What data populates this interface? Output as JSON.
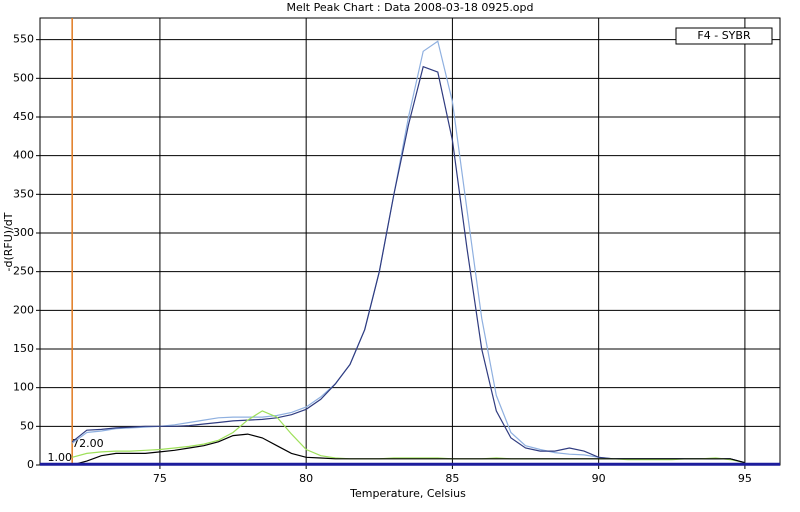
{
  "chart_data": {
    "type": "line",
    "title": "Melt Peak Chart : Data 2008-03-18 0925.opd",
    "xlabel": "Temperature, Celsius",
    "ylabel": "-d(RFU)/dT",
    "legend": {
      "label": "F4 - SYBR",
      "position": "top-right"
    },
    "grid": true,
    "xlim": [
      70.9,
      96.2
    ],
    "ylim": [
      0,
      578
    ],
    "xticks": [
      75,
      80,
      85,
      90,
      95
    ],
    "yticks": [
      0,
      50,
      100,
      150,
      200,
      250,
      300,
      350,
      400,
      450,
      500,
      550
    ],
    "marker": {
      "value": 72,
      "label": "72.00",
      "color": "#e07a20"
    },
    "baseline": {
      "value": 1,
      "label": "1.00",
      "color": "#1c1c9c"
    },
    "x": [
      72,
      72.5,
      73,
      73.5,
      74,
      74.5,
      75,
      75.5,
      76,
      76.5,
      77,
      77.5,
      78,
      78.5,
      79,
      79.5,
      80,
      80.5,
      81,
      81.5,
      82,
      82.5,
      83,
      83.5,
      84,
      84.5,
      85,
      85.5,
      86,
      86.5,
      87,
      87.5,
      88,
      88.5,
      89,
      89.5,
      90,
      90.5,
      91,
      91.5,
      92,
      92.5,
      93,
      93.5,
      94,
      94.5,
      95
    ],
    "series": [
      {
        "color": "#8fb0e0",
        "values": [
          28,
          42,
          44,
          47,
          48,
          49,
          50,
          52,
          55,
          58,
          61,
          62,
          62,
          62,
          64,
          68,
          75,
          88,
          105,
          130,
          175,
          250,
          350,
          450,
          535,
          548,
          470,
          330,
          190,
          90,
          42,
          25,
          20,
          16,
          14,
          13,
          10,
          8,
          8,
          8,
          8,
          8,
          8,
          8,
          8,
          8,
          3
        ]
      },
      {
        "color": "#303c80",
        "values": [
          30,
          45,
          46,
          48,
          49,
          50,
          50,
          50,
          51,
          53,
          55,
          57,
          58,
          59,
          61,
          65,
          72,
          85,
          105,
          130,
          175,
          250,
          350,
          440,
          515,
          508,
          420,
          280,
          150,
          70,
          35,
          22,
          18,
          18,
          22,
          18,
          10,
          8,
          8,
          8,
          8,
          8,
          8,
          8,
          8,
          8,
          3
        ]
      },
      {
        "color": "#9ee05a",
        "values": [
          10,
          15,
          17,
          18,
          18,
          19,
          20,
          22,
          24,
          27,
          32,
          42,
          58,
          70,
          62,
          40,
          20,
          12,
          9,
          8,
          8,
          8,
          9,
          9,
          9,
          9,
          8,
          8,
          8,
          9,
          8,
          8,
          8,
          8,
          8,
          8,
          8,
          8,
          7,
          7,
          7,
          7,
          8,
          8,
          9,
          7,
          3
        ]
      },
      {
        "color": "#000000",
        "values": [
          0,
          5,
          12,
          15,
          15,
          15,
          17,
          19,
          22,
          25,
          30,
          38,
          40,
          35,
          25,
          15,
          10,
          9,
          8,
          8,
          8,
          8,
          8,
          8,
          8,
          8,
          8,
          8,
          8,
          8,
          8,
          8,
          8,
          8,
          8,
          8,
          8,
          8,
          8,
          8,
          8,
          8,
          8,
          8,
          8,
          8,
          3
        ]
      }
    ]
  }
}
